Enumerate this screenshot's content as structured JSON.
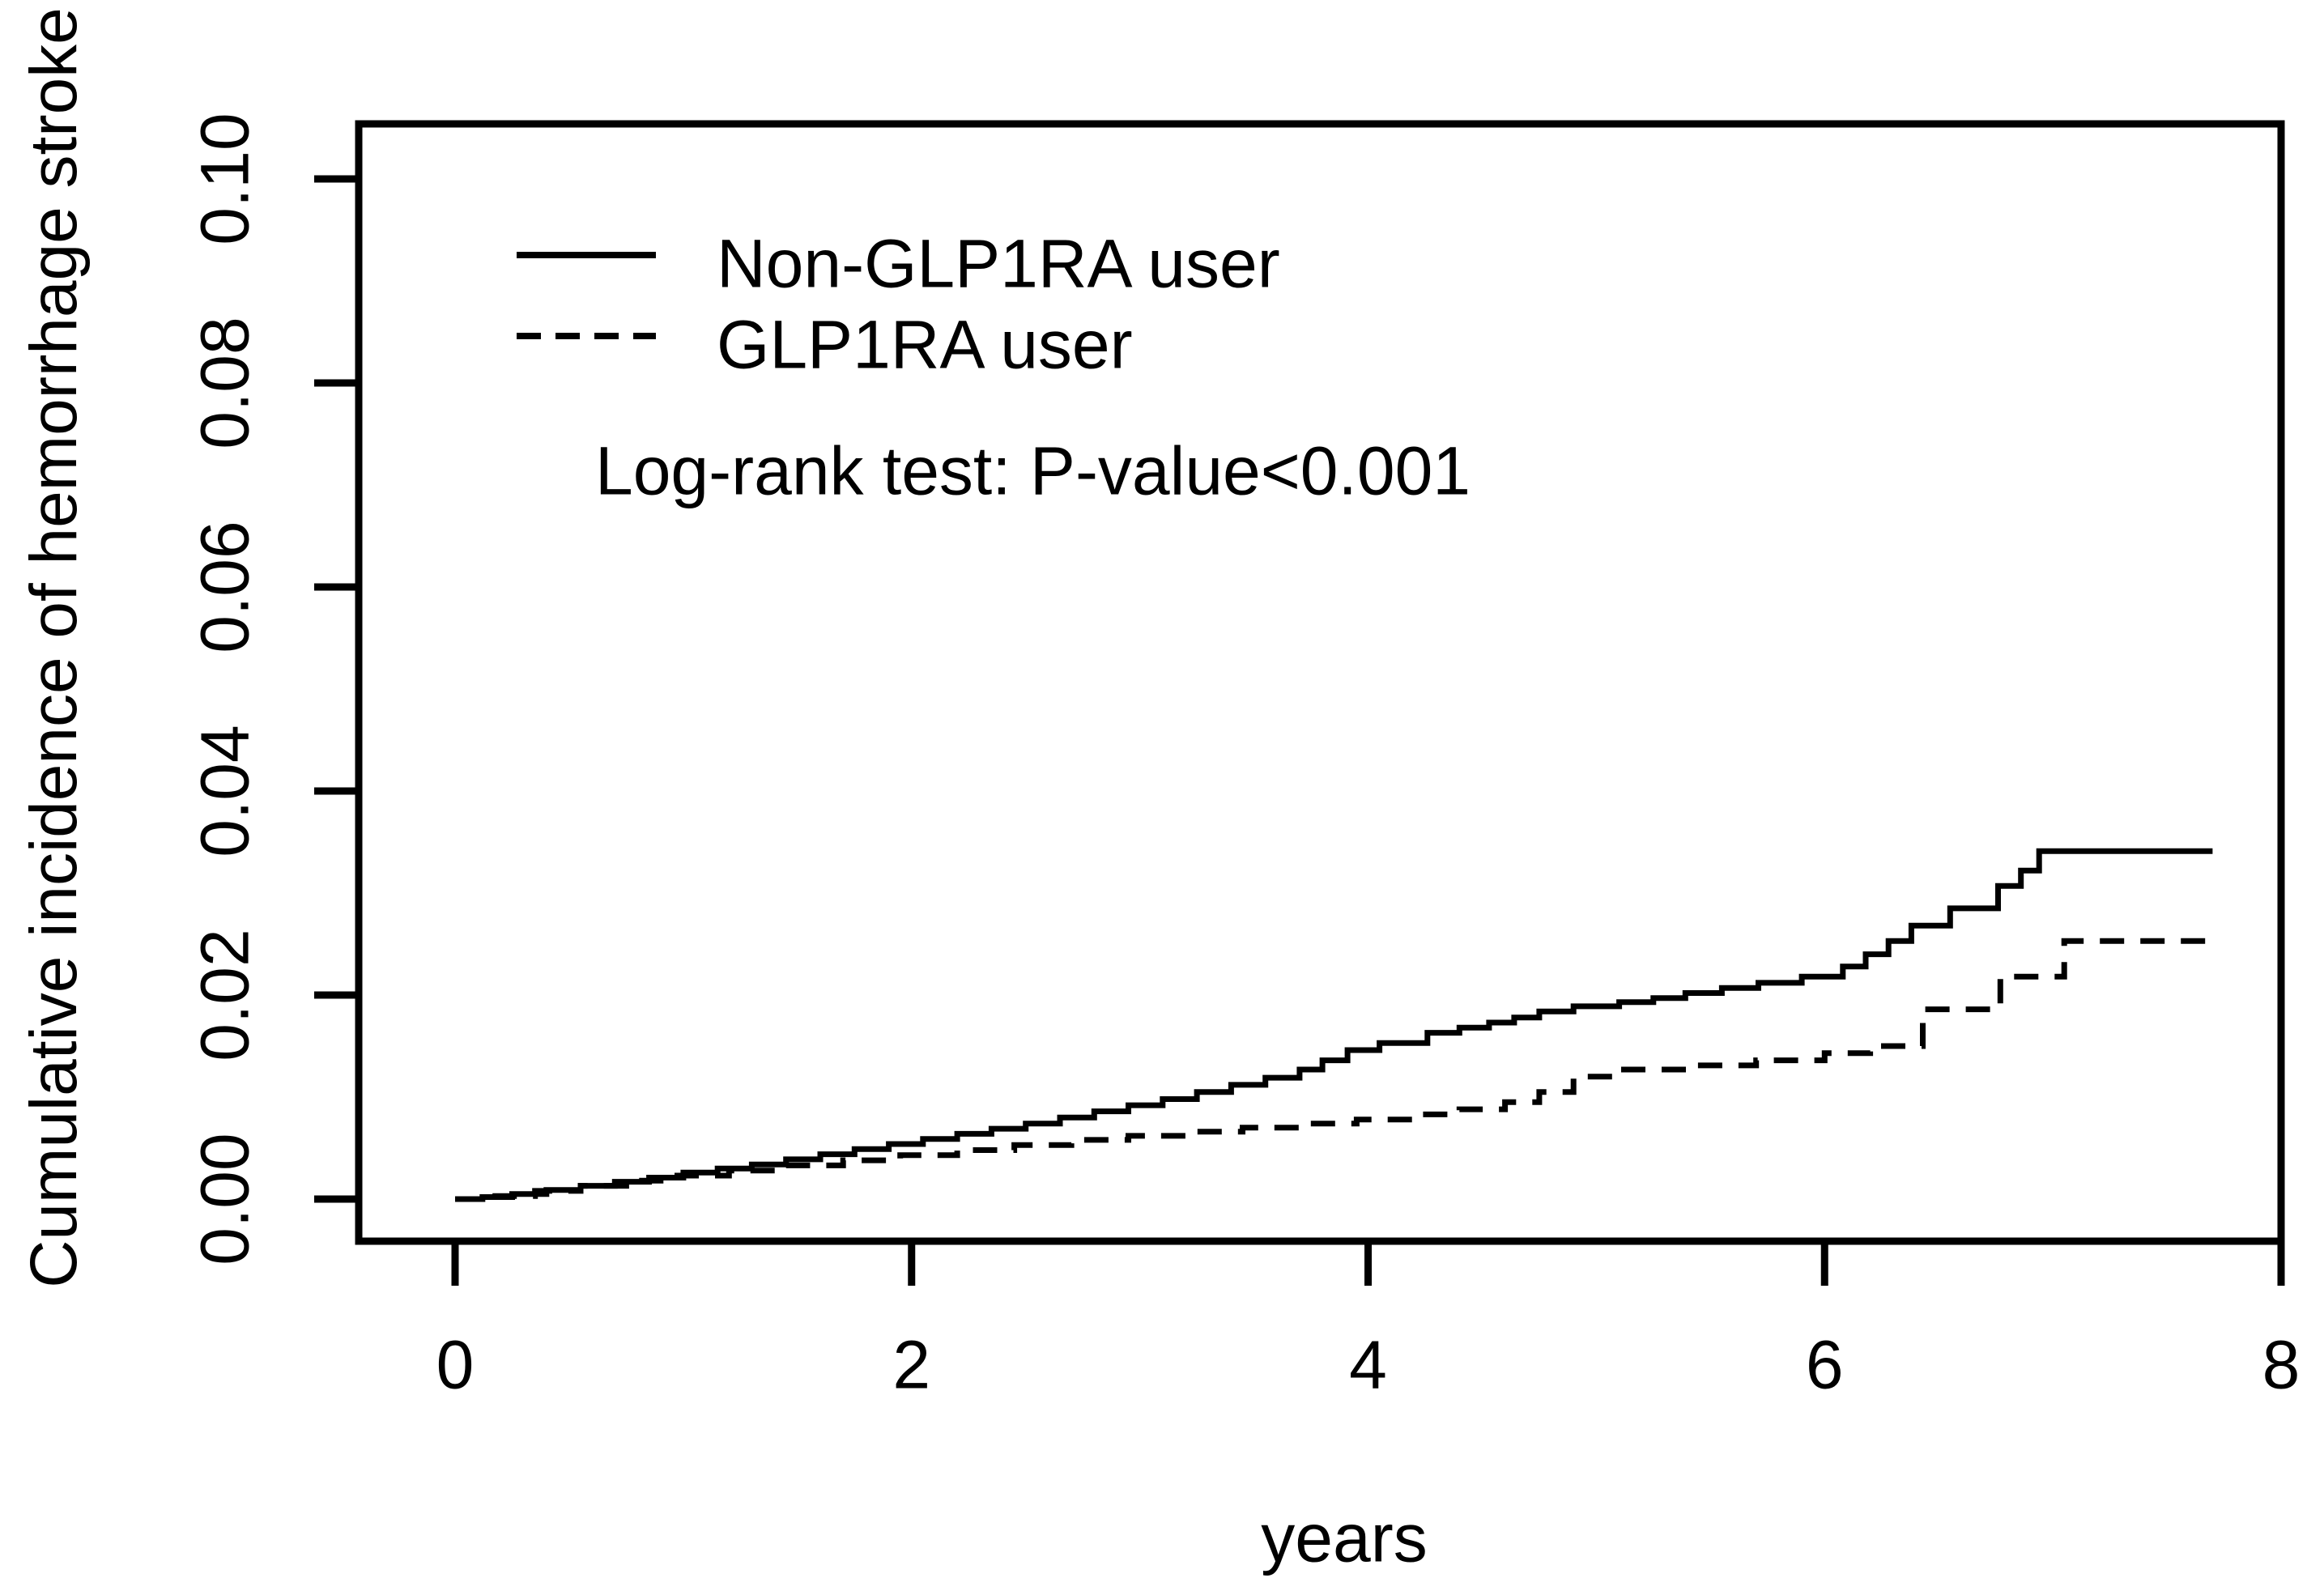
{
  "chart_data": {
    "type": "line",
    "subtype": "kaplan-meier-cumulative-incidence-step",
    "title": "",
    "xlabel": "years",
    "ylabel": "Cumulative incidence of hemorrhage stroke",
    "annotation": "Log-rank test: P-value<0.001",
    "grid": "off",
    "legend_position": "top-left-inside",
    "x_axis": {
      "label": "years",
      "range_shown": [
        -0.42,
        8.0
      ],
      "ticks": [
        {
          "label": "0",
          "value": 0
        },
        {
          "label": "2",
          "value": 2
        },
        {
          "label": "4",
          "value": 4
        },
        {
          "label": "6",
          "value": 6
        },
        {
          "label": "8",
          "value": 8
        }
      ]
    },
    "y_axis": {
      "label": "Cumulative incidence of hemorrhage stroke",
      "range_shown": [
        -0.004,
        0.105
      ],
      "ticks": [
        {
          "label": "0.00",
          "value": 0.0
        },
        {
          "label": "0.02",
          "value": 0.02
        },
        {
          "label": "0.04",
          "value": 0.04
        },
        {
          "label": "0.06",
          "value": 0.06
        },
        {
          "label": "0.08",
          "value": 0.08
        },
        {
          "label": "0.10",
          "value": 0.1
        }
      ]
    },
    "series": [
      {
        "name": "Non-GLP1RA user",
        "line_style": "solid",
        "color": "#000000",
        "x": [
          0,
          0.12,
          0.25,
          0.4,
          0.55,
          0.7,
          0.85,
          1.0,
          1.15,
          1.3,
          1.45,
          1.6,
          1.75,
          1.9,
          2.05,
          2.2,
          2.35,
          2.5,
          2.65,
          2.8,
          2.95,
          3.1,
          3.25,
          3.4,
          3.55,
          3.7,
          3.8,
          3.91,
          4.05,
          4.26,
          4.4,
          4.53,
          4.64,
          4.75,
          4.9,
          5.1,
          5.25,
          5.39,
          5.55,
          5.71,
          5.9,
          6.08,
          6.18,
          6.28,
          6.38,
          6.55,
          6.76,
          6.86,
          6.94,
          7.7
        ],
        "y": [
          0,
          0.0002,
          0.0005,
          0.0009,
          0.0013,
          0.0017,
          0.0021,
          0.0026,
          0.003,
          0.0034,
          0.0039,
          0.0044,
          0.0049,
          0.0054,
          0.0059,
          0.0064,
          0.0069,
          0.0074,
          0.008,
          0.0086,
          0.0092,
          0.0098,
          0.0105,
          0.0112,
          0.0119,
          0.0127,
          0.0136,
          0.0146,
          0.0153,
          0.0163,
          0.0168,
          0.0173,
          0.0178,
          0.0184,
          0.0189,
          0.0193,
          0.0197,
          0.0202,
          0.0207,
          0.0212,
          0.0218,
          0.0228,
          0.024,
          0.0253,
          0.0268,
          0.0285,
          0.0307,
          0.0322,
          0.0341,
          0.0341
        ]
      },
      {
        "name": "GLP1RA user",
        "line_style": "dashed",
        "color": "#000000",
        "x": [
          0,
          0.15,
          0.35,
          0.55,
          0.75,
          0.95,
          1.2,
          1.45,
          1.7,
          1.95,
          2.2,
          2.45,
          2.7,
          2.95,
          3.2,
          3.45,
          3.7,
          3.95,
          4.2,
          4.4,
          4.6,
          4.75,
          4.9,
          5.1,
          5.4,
          5.7,
          6.0,
          6.2,
          6.43,
          6.77,
          7.05,
          7.7
        ],
        "y": [
          0,
          0.0003,
          0.0008,
          0.0013,
          0.0018,
          0.0023,
          0.0028,
          0.0033,
          0.0038,
          0.0043,
          0.0048,
          0.0053,
          0.0058,
          0.0062,
          0.0066,
          0.007,
          0.0074,
          0.0078,
          0.0083,
          0.0088,
          0.0095,
          0.0105,
          0.012,
          0.0127,
          0.0131,
          0.0136,
          0.0143,
          0.015,
          0.0186,
          0.0218,
          0.0253,
          0.0253
        ]
      }
    ],
    "legend": {
      "entries": [
        {
          "label": "Non-GLP1RA user",
          "line_style": "solid"
        },
        {
          "label": "GLP1RA user",
          "line_style": "dashed"
        }
      ]
    },
    "colors": {
      "foreground": "#000000",
      "background": "#ffffff"
    }
  }
}
